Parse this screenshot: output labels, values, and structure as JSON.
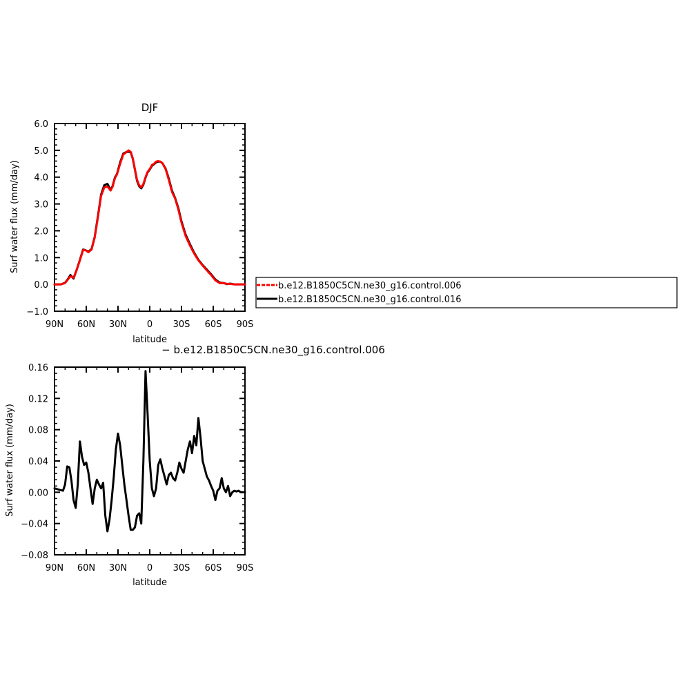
{
  "chart_data": [
    {
      "type": "line",
      "title": "DJF",
      "xlabel": "latitude",
      "ylabel": "Surf water flux (mm/day)",
      "x_ticks": [
        "90N",
        "60N",
        "30N",
        "0",
        "30S",
        "60S",
        "90S"
      ],
      "y_ticks": [
        "-1.0",
        "0.0",
        "1.0",
        "2.0",
        "3.0",
        "4.0",
        "5.0",
        "6.0"
      ],
      "xlim": [
        90,
        -90
      ],
      "ylim": [
        -1.0,
        6.0
      ],
      "legend": {
        "placement": "right",
        "entries": [
          "b.e12.B1850C5CN.ne30_g16.control.006",
          "b.e12.B1850C5CN.ne30_g16.control.016"
        ]
      },
      "series": [
        {
          "name": "b.e12.B1850C5CN.ne30_g16.control.006",
          "color": "#ff0000",
          "dash": true,
          "x": [
            90,
            84,
            80,
            77,
            75,
            72,
            69,
            66,
            63,
            61,
            58,
            55,
            52,
            49,
            46,
            43,
            40,
            37,
            35,
            33,
            31,
            28,
            25,
            23,
            20,
            18,
            16,
            14,
            12,
            10,
            8,
            6,
            4,
            2,
            0,
            -2,
            -4,
            -6,
            -8,
            -10,
            -12,
            -15,
            -18,
            -21,
            -24,
            -27,
            -30,
            -34,
            -38,
            -42,
            -46,
            -50,
            -54,
            -58,
            -62,
            -66,
            -70,
            -73,
            -76,
            -80,
            -84,
            -88,
            -90
          ],
          "y": [
            0.0,
            0.0,
            0.05,
            0.2,
            0.3,
            0.25,
            0.55,
            0.9,
            1.28,
            1.28,
            1.2,
            1.3,
            1.75,
            2.5,
            3.3,
            3.62,
            3.65,
            3.5,
            3.65,
            3.95,
            4.1,
            4.5,
            4.85,
            4.9,
            5.0,
            4.95,
            4.7,
            4.3,
            3.9,
            3.7,
            3.62,
            3.75,
            4.0,
            4.2,
            4.3,
            4.45,
            4.5,
            4.58,
            4.6,
            4.58,
            4.52,
            4.3,
            3.9,
            3.45,
            3.2,
            2.8,
            2.3,
            1.8,
            1.45,
            1.15,
            0.9,
            0.7,
            0.52,
            0.35,
            0.15,
            0.05,
            0.05,
            0.02,
            0.02,
            0.0,
            0.0,
            0.0,
            0.0
          ]
        },
        {
          "name": "b.e12.B1850C5CN.ne30_g16.control.016",
          "color": "#000000",
          "dash": false,
          "x": [
            90,
            84,
            80,
            77,
            75,
            72,
            69,
            66,
            63,
            61,
            58,
            55,
            52,
            49,
            46,
            43,
            40,
            37,
            35,
            33,
            31,
            28,
            25,
            23,
            20,
            18,
            16,
            14,
            12,
            10,
            8,
            6,
            4,
            2,
            0,
            -2,
            -4,
            -6,
            -8,
            -10,
            -12,
            -15,
            -18,
            -21,
            -24,
            -27,
            -30,
            -34,
            -38,
            -42,
            -46,
            -50,
            -54,
            -58,
            -62,
            -66,
            -70,
            -73,
            -76,
            -80,
            -84,
            -88,
            -90
          ],
          "y": [
            0.0,
            0.0,
            0.06,
            0.22,
            0.35,
            0.22,
            0.55,
            0.92,
            1.3,
            1.28,
            1.22,
            1.32,
            1.78,
            2.55,
            3.35,
            3.7,
            3.75,
            3.52,
            3.68,
            3.98,
            4.12,
            4.55,
            4.88,
            4.92,
            4.95,
            4.93,
            4.68,
            4.28,
            3.86,
            3.66,
            3.58,
            3.72,
            3.98,
            4.18,
            4.28,
            4.42,
            4.48,
            4.55,
            4.58,
            4.58,
            4.52,
            4.32,
            3.95,
            3.5,
            3.22,
            2.85,
            2.35,
            1.85,
            1.5,
            1.18,
            0.92,
            0.72,
            0.55,
            0.38,
            0.18,
            0.07,
            0.05,
            0.01,
            0.03,
            0.0,
            0.0,
            0.0,
            0.0
          ]
        }
      ]
    },
    {
      "type": "line",
      "title": "− b.e12.B1850C5CN.ne30_g16.control.006",
      "xlabel": "latitude",
      "ylabel": "Surf water flux (mm/day)",
      "x_ticks": [
        "90N",
        "60N",
        "30N",
        "0",
        "30S",
        "60S",
        "90S"
      ],
      "y_ticks": [
        "-0.08",
        "-0.04",
        "0.00",
        "0.04",
        "0.08",
        "0.12",
        "0.16"
      ],
      "xlim": [
        90,
        -90
      ],
      "ylim": [
        -0.08,
        0.16
      ],
      "series": [
        {
          "color": "#000000",
          "x": [
            90,
            85,
            82,
            80,
            78,
            76,
            74,
            72,
            70,
            68,
            66,
            64,
            62,
            60,
            58,
            56,
            54,
            52,
            50,
            48,
            46,
            44,
            42,
            40,
            38,
            36,
            34,
            32,
            30,
            28,
            26,
            24,
            22,
            20,
            18,
            16,
            14,
            12,
            10,
            8,
            6,
            4,
            2,
            0,
            -2,
            -4,
            -6,
            -8,
            -10,
            -12,
            -14,
            -16,
            -18,
            -20,
            -22,
            -24,
            -26,
            -28,
            -30,
            -32,
            -34,
            -36,
            -38,
            -40,
            -42,
            -44,
            -46,
            -48,
            -50,
            -52,
            -54,
            -56,
            -58,
            -60,
            -62,
            -64,
            -66,
            -68,
            -70,
            -72,
            -74,
            -76,
            -78,
            -80,
            -82,
            -84,
            -86,
            -88,
            -90
          ],
          "y": [
            0.005,
            0.003,
            0.002,
            0.01,
            0.033,
            0.032,
            0.015,
            -0.01,
            -0.02,
            0.01,
            0.065,
            0.045,
            0.035,
            0.038,
            0.025,
            0.005,
            -0.015,
            0.005,
            0.016,
            0.01,
            0.005,
            0.012,
            -0.03,
            -0.05,
            -0.035,
            -0.01,
            0.02,
            0.055,
            0.075,
            0.06,
            0.035,
            0.01,
            -0.01,
            -0.03,
            -0.048,
            -0.048,
            -0.045,
            -0.03,
            -0.027,
            -0.04,
            0.04,
            0.155,
            0.1,
            0.04,
            0.005,
            -0.005,
            0.005,
            0.035,
            0.042,
            0.03,
            0.02,
            0.01,
            0.022,
            0.025,
            0.018,
            0.015,
            0.025,
            0.038,
            0.03,
            0.025,
            0.04,
            0.055,
            0.065,
            0.05,
            0.072,
            0.06,
            0.095,
            0.07,
            0.04,
            0.03,
            0.02,
            0.015,
            0.008,
            0.002,
            -0.01,
            0.002,
            0.005,
            0.018,
            0.005,
            0.0,
            0.008,
            -0.005,
            0.0,
            0.002,
            0.001,
            0.002,
            0.0,
            0.0,
            0.0
          ]
        }
      ]
    }
  ]
}
